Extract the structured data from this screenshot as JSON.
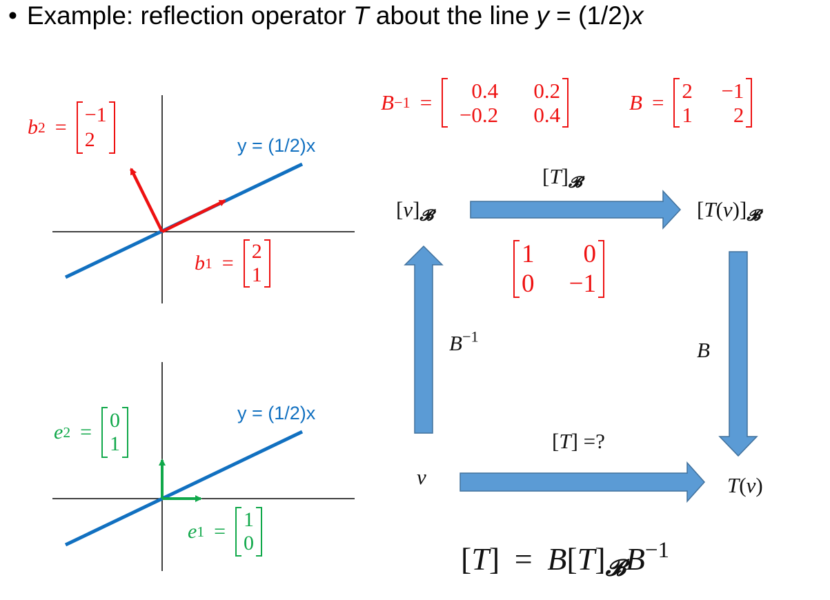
{
  "title": {
    "bullet": "•",
    "prefix": "Example: reflection operator ",
    "T": "T",
    "middle": " about the line ",
    "y": "y",
    "equation": " = (1/2)",
    "x": "x"
  },
  "top_plot": {
    "line_label": "y = (1/2)x",
    "b1": {
      "name": "b",
      "sub": "1",
      "eq": "=",
      "values": [
        "2",
        "1"
      ]
    },
    "b2": {
      "name": "b",
      "sub": "2",
      "eq": "=",
      "values": [
        "−1",
        "2"
      ]
    }
  },
  "bottom_plot": {
    "line_label": "y = (1/2)x",
    "e1": {
      "name": "e",
      "sub": "1",
      "eq": "=",
      "values": [
        "1",
        "0"
      ]
    },
    "e2": {
      "name": "e",
      "sub": "2",
      "eq": "=",
      "values": [
        "0",
        "1"
      ]
    }
  },
  "matrices": {
    "b_inverse": {
      "name": "B",
      "sup": "−1",
      "eq": "=",
      "rows": [
        [
          "0.4",
          "0.2"
        ],
        [
          "−0.2",
          "0.4"
        ]
      ]
    },
    "b": {
      "name": "B",
      "eq": "=",
      "rows": [
        [
          "2",
          "−1"
        ],
        [
          "1",
          "2"
        ]
      ]
    },
    "t_b": {
      "rows": [
        [
          "1",
          "0"
        ],
        [
          "0",
          "−1"
        ]
      ]
    }
  },
  "diagram": {
    "v_b": {
      "open": "[",
      "v": "v",
      "close": "]",
      "sub": "𝓑"
    },
    "tv_b": {
      "open": "[",
      "T": "T",
      "paren": "(",
      "v": "v",
      "paren_close": ")",
      "close": "]",
      "sub": "𝓑"
    },
    "t_b_label": {
      "open": "[",
      "T": "T",
      "close": "]",
      "sub": "𝓑"
    },
    "b_inv_label": {
      "name": "B",
      "sup": "−1"
    },
    "b_label": "B",
    "t_q_label": {
      "open": "[",
      "T": "T",
      "close": "]",
      "rest": " =?"
    },
    "v": "v",
    "tv": {
      "T": "T",
      "paren": "(",
      "v": "v",
      "paren_close": ")"
    },
    "arrow_color": "#5b9bd5"
  },
  "formula": {
    "lhs_open": "[",
    "lhs_T": "T",
    "lhs_close": "]",
    "eq": "=",
    "B": "B",
    "open2": "[",
    "T2": "T",
    "close2": "]",
    "sub": "𝓑",
    "B2": "B",
    "sup": "−1"
  },
  "colors": {
    "red": "#ee1111",
    "blue": "#1170c0",
    "green": "#10a84a"
  }
}
